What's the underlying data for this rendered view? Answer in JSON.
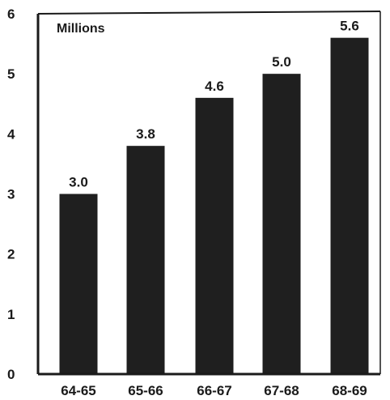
{
  "chart_data": {
    "type": "bar",
    "title": "",
    "unit_label": "Millions",
    "xlabel": "",
    "ylabel": "",
    "categories": [
      "64-65",
      "65-66",
      "66-67",
      "67-68",
      "68-69"
    ],
    "values": [
      3.0,
      3.8,
      4.6,
      5.0,
      5.6
    ],
    "value_labels": [
      "3.0",
      "3.8",
      "4.6",
      "5.0",
      "5.6"
    ],
    "ylim": [
      0,
      6
    ],
    "yticks": [
      "0",
      "1",
      "2",
      "3",
      "4",
      "5",
      "6"
    ],
    "grid": false,
    "legend": "none",
    "colors": {
      "bar": "#1f1f1f",
      "axis": "#1a1a1a",
      "text": "#1a1a1a"
    }
  }
}
